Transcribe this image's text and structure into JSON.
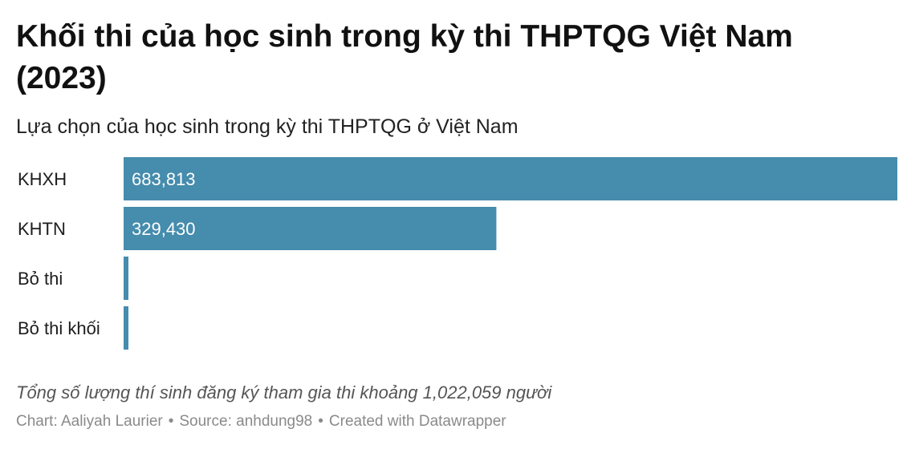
{
  "title": "Khối thi của học sinh trong kỳ thi THPTQG Việt Nam (2023)",
  "subtitle": "Lựa chọn của học sinh trong kỳ thi THPTQG ở Việt Nam",
  "notes": "Tổng số lượng thí sinh đăng ký tham gia thi khoảng 1,022,059 người",
  "footer": {
    "chart_by": "Chart: Aaliyah Laurier",
    "source": "Source: anhdung98",
    "created_with": "Created with Datawrapper",
    "separator": "•"
  },
  "colors": {
    "bar": "#458cad",
    "bar_label": "#ffffff",
    "category_label": "#1d1d1d"
  },
  "chart_data": {
    "type": "bar",
    "orientation": "horizontal",
    "categories": [
      "KHXH",
      "KHTN",
      "Bỏ thi",
      "Bỏ thi khối"
    ],
    "values": [
      683813,
      329430,
      2000,
      2000
    ],
    "value_labels": [
      "683,813",
      "329,430",
      "",
      ""
    ],
    "title": "Khối thi của học sinh trong kỳ thi THPTQG Việt Nam (2023)",
    "subtitle": "Lựa chọn của học sinh trong kỳ thi THPTQG ở Việt Nam",
    "xlabel": "",
    "ylabel": "",
    "xlim": [
      0,
      683813
    ],
    "grid": false,
    "legend": "none"
  }
}
